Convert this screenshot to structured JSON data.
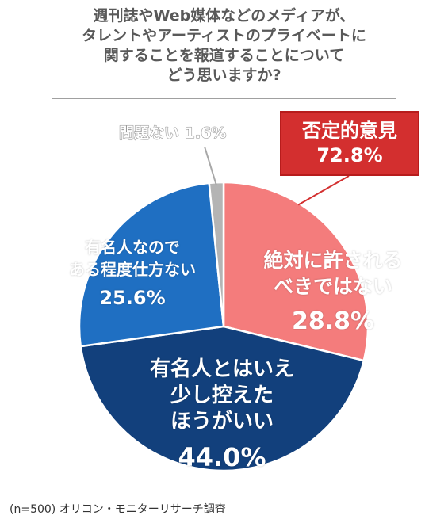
{
  "title_lines": [
    "週刊誌やWeb媒体などのメディアが、",
    "タレントやアーティストのプライベートに",
    "関することを報道することについて",
    "どう思いますか?"
  ],
  "negative_group": {
    "label": "否定的意見",
    "value": "72.8%"
  },
  "footer": "(n=500) オリコン・モニターリサーチ調査",
  "colors": {
    "slice_absolutely": "#f47c7c",
    "slice_refrain": "#12407c",
    "slice_unavoidable": "#1f6fc2",
    "slice_no_problem": "#b4b4b4",
    "negative_box": "#d32f2f"
  },
  "chart_data": {
    "type": "pie",
    "start": "12 o'clock, clockwise",
    "slices": [
      {
        "name_lines": [
          "絶対に許される",
          "べきではない"
        ],
        "value": 28.8,
        "value_label": "28.8%"
      },
      {
        "name_lines": [
          "有名人とはいえ",
          "少し控えた",
          "ほうがいい"
        ],
        "value": 44.0,
        "value_label": "44.0%"
      },
      {
        "name_lines": [
          "有名人なので",
          "ある程度仕方ない"
        ],
        "value": 25.6,
        "value_label": "25.6%"
      },
      {
        "name_lines": [
          "問題ない"
        ],
        "value": 1.6,
        "value_label": "1.6%"
      }
    ]
  }
}
